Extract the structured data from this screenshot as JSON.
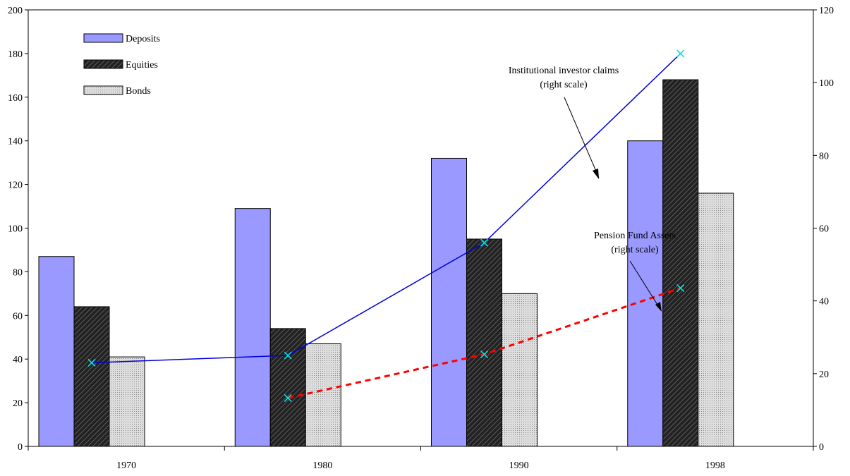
{
  "chart_data": {
    "type": "bar",
    "categories": [
      "1970",
      "1980",
      "1990",
      "1998"
    ],
    "left_axis": {
      "ylim": [
        0,
        200
      ],
      "ticks": [
        "0",
        "20",
        "40",
        "60",
        "80",
        "100",
        "120",
        "140",
        "160",
        "180",
        "200"
      ]
    },
    "right_axis": {
      "ylim": [
        0,
        120
      ],
      "ticks": [
        "0",
        "20",
        "40",
        "60",
        "80",
        "100",
        "120"
      ]
    },
    "legend_position": "top-left",
    "grid": false,
    "series": [
      {
        "name": "Deposits",
        "kind": "bar",
        "axis": "left",
        "color": "#9999ff",
        "values": [
          87,
          109,
          132,
          140
        ]
      },
      {
        "name": "Equities",
        "kind": "bar",
        "axis": "left",
        "color": "#333333",
        "pattern": "diagonal-hatch",
        "values": [
          64,
          54,
          95,
          168
        ]
      },
      {
        "name": "Bonds",
        "kind": "bar",
        "axis": "left",
        "color": "#d4d4d4",
        "pattern": "dotted",
        "values": [
          41,
          47,
          70,
          116
        ]
      },
      {
        "kind": "line",
        "axis": "right",
        "color": "#0000dd",
        "marker_color": "#00e5e5",
        "style": "solid",
        "values": [
          23,
          25,
          56,
          108
        ]
      },
      {
        "kind": "line",
        "axis": "right",
        "color": "#ff0000",
        "marker_color": "#00e5e5",
        "style": "dashed",
        "values": [
          null,
          13.3,
          25.3,
          43.5
        ]
      }
    ],
    "annotations": {
      "institutional": [
        "Institutional investor claims",
        "(right scale)"
      ],
      "pension": [
        "Pension Fund Assets",
        "(right scale)"
      ]
    }
  }
}
